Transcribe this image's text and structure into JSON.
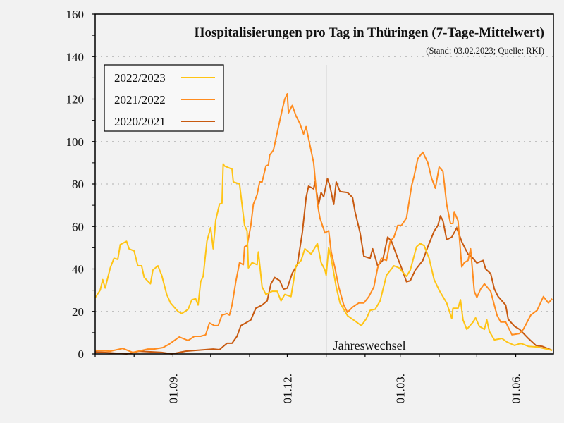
{
  "chart_data": {
    "type": "line",
    "title": "Hospitalisierungen pro Tag in Thüringen (7-Tage-Mittelwert)",
    "subtitle": "(Stand: 03.02.2023; Quelle: RKI)",
    "xlabel": "",
    "ylabel": "",
    "ylim": [
      0,
      160
    ],
    "xlim": [
      "01.07.",
      "30.06."
    ],
    "yticks": [
      "0",
      "20",
      "40",
      "60",
      "80",
      "100",
      "120",
      "140",
      "160"
    ],
    "xticks": [
      "01.09.",
      "01.12.",
      "01.03.",
      "01.06."
    ],
    "grid": "horizontal dotted",
    "legend_position": "top-left",
    "annotation": {
      "label": "Jahreswechsel",
      "x": "01.01."
    },
    "series": [
      {
        "name": "2022/2023",
        "color": "#ffc414",
        "points": [
          [
            "01.07.",
            26.5
          ],
          [
            "05.07.",
            30
          ],
          [
            "07.07.",
            35
          ],
          [
            "09.07.",
            31
          ],
          [
            "13.07.",
            40.5
          ],
          [
            "16.07.",
            45
          ],
          [
            "19.07.",
            44.5
          ],
          [
            "21.07.",
            51.5
          ],
          [
            "26.07.",
            53
          ],
          [
            "28.07.",
            49.5
          ],
          [
            "01.08.",
            48.5
          ],
          [
            "04.08.",
            41.5
          ],
          [
            "07.08.",
            41.5
          ],
          [
            "09.08.",
            36
          ],
          [
            "14.08.",
            33
          ],
          [
            "16.08.",
            39.5
          ],
          [
            "20.08.",
            41.5
          ],
          [
            "23.08.",
            37
          ],
          [
            "27.08.",
            28
          ],
          [
            "30.08.",
            24
          ],
          [
            "05.09.",
            20
          ],
          [
            "08.09.",
            19
          ],
          [
            "13.09.",
            21
          ],
          [
            "16.09.",
            25.5
          ],
          [
            "19.09.",
            26
          ],
          [
            "21.09.",
            23
          ],
          [
            "23.09.",
            34
          ],
          [
            "25.09.",
            36.5
          ],
          [
            "28.09.",
            53
          ],
          [
            "01.10.",
            59.5
          ],
          [
            "03.10.",
            49.5
          ],
          [
            "05.10.",
            63
          ],
          [
            "08.10.",
            70.5
          ],
          [
            "10.10.",
            71
          ],
          [
            "11.10.",
            89.5
          ],
          [
            "12.10.",
            88.5
          ],
          [
            "18.10.",
            87
          ],
          [
            "19.10.",
            81
          ],
          [
            "24.10.",
            80
          ],
          [
            "28.10.",
            60.5
          ],
          [
            "30.10.",
            58
          ],
          [
            "31.10.",
            40.5
          ],
          [
            "03.11.",
            43
          ],
          [
            "07.11.",
            42
          ],
          [
            "08.11.",
            48
          ],
          [
            "11.11.",
            31.5
          ],
          [
            "14.11.",
            28
          ],
          [
            "19.11.",
            29.5
          ],
          [
            "23.11.",
            29.5
          ],
          [
            "26.11.",
            25
          ],
          [
            "29.11.",
            28
          ],
          [
            "04.12.",
            27
          ],
          [
            "08.12.",
            41.5
          ],
          [
            "12.12.",
            44
          ],
          [
            "15.12.",
            49.5
          ],
          [
            "20.12.",
            47
          ],
          [
            "25.12.",
            52
          ],
          [
            "28.12.",
            43
          ],
          [
            "31.12.",
            39.5
          ],
          [
            "01.01.",
            37
          ],
          [
            "03.01.",
            50
          ],
          [
            "05.01.",
            45
          ],
          [
            "09.01.",
            31.5
          ],
          [
            "12.01.",
            24
          ],
          [
            "18.01.",
            18
          ],
          [
            "24.01.",
            15.5
          ],
          [
            "29.01.",
            13.3
          ],
          [
            "02.02.",
            16.6
          ],
          [
            "05.02.",
            20.5
          ],
          [
            "09.02.",
            21
          ],
          [
            "13.02.",
            25
          ],
          [
            "18.02.",
            37
          ],
          [
            "24.02.",
            41.5
          ],
          [
            "28.02.",
            40.5
          ],
          [
            "06.03.",
            36.5
          ],
          [
            "09.03.",
            39.5
          ],
          [
            "14.03.",
            50.5
          ],
          [
            "17.03.",
            52
          ],
          [
            "20.03.",
            51
          ],
          [
            "24.03.",
            45
          ],
          [
            "28.03.",
            35
          ],
          [
            "01.04.",
            30
          ],
          [
            "07.04.",
            24
          ],
          [
            "11.04.",
            16.6
          ],
          [
            "12.04.",
            21.5
          ],
          [
            "16.04.",
            21.5
          ],
          [
            "18.04.",
            25.5
          ],
          [
            "20.04.",
            16
          ],
          [
            "23.04.",
            11.6
          ],
          [
            "28.04.",
            15
          ],
          [
            "30.04.",
            17
          ],
          [
            "03.05.",
            13
          ],
          [
            "07.05.",
            11.6
          ],
          [
            "09.05.",
            16
          ],
          [
            "11.05.",
            10.6
          ],
          [
            "15.05.",
            6.6
          ],
          [
            "21.05.",
            7.3
          ],
          [
            "25.05.",
            5.6
          ],
          [
            "31.05.",
            4
          ],
          [
            "05.06.",
            5
          ],
          [
            "11.06.",
            3.6
          ],
          [
            "18.06.",
            3.3
          ],
          [
            "30.06.",
            1.7
          ]
        ]
      },
      {
        "name": "2021/2022",
        "color": "#ff8c1f",
        "points": [
          [
            "01.07.",
            1.7
          ],
          [
            "13.07.",
            1.3
          ],
          [
            "23.07.",
            2.6
          ],
          [
            "31.07.",
            0.7
          ],
          [
            "12.08.",
            2.3
          ],
          [
            "17.08.",
            2.3
          ],
          [
            "24.08.",
            3
          ],
          [
            "29.08.",
            4.6
          ],
          [
            "06.09.",
            8
          ],
          [
            "13.09.",
            6.3
          ],
          [
            "18.09.",
            8.3
          ],
          [
            "23.09.",
            8.3
          ],
          [
            "27.09.",
            9
          ],
          [
            "30.09.",
            14.6
          ],
          [
            "04.10.",
            13.3
          ],
          [
            "07.10.",
            13.3
          ],
          [
            "10.10.",
            18.3
          ],
          [
            "14.10.",
            19
          ],
          [
            "16.10.",
            18.3
          ],
          [
            "18.10.",
            23
          ],
          [
            "21.10.",
            34
          ],
          [
            "24.10.",
            43
          ],
          [
            "27.10.",
            42
          ],
          [
            "28.10.",
            50.5
          ],
          [
            "30.10.",
            51
          ],
          [
            "02.11.",
            60.5
          ],
          [
            "04.11.",
            70.5
          ],
          [
            "07.11.",
            75
          ],
          [
            "09.11.",
            81
          ],
          [
            "11.11.",
            81
          ],
          [
            "14.11.",
            88.5
          ],
          [
            "16.11.",
            89
          ],
          [
            "17.11.",
            93.6
          ],
          [
            "20.11.",
            96
          ],
          [
            "24.11.",
            107
          ],
          [
            "27.11.",
            115
          ],
          [
            "29.11.",
            120
          ],
          [
            "01.12.",
            122.5
          ],
          [
            "02.12.",
            113.5
          ],
          [
            "05.12.",
            117
          ],
          [
            "08.12.",
            112
          ],
          [
            "11.12.",
            108.5
          ],
          [
            "14.12.",
            103.5
          ],
          [
            "16.12.",
            107
          ],
          [
            "19.12.",
            98.5
          ],
          [
            "22.12.",
            90
          ],
          [
            "25.12.",
            71
          ],
          [
            "27.12.",
            64
          ],
          [
            "31.12.",
            57
          ],
          [
            "03.01.",
            58
          ],
          [
            "05.01.",
            48
          ],
          [
            "08.01.",
            40.5
          ],
          [
            "11.01.",
            31.5
          ],
          [
            "15.01.",
            23
          ],
          [
            "18.01.",
            19.6
          ],
          [
            "22.01.",
            22
          ],
          [
            "27.01.",
            24
          ],
          [
            "31.01.",
            24
          ],
          [
            "04.02.",
            27
          ],
          [
            "08.02.",
            31.5
          ],
          [
            "11.02.",
            40.5
          ],
          [
            "14.02.",
            45
          ],
          [
            "18.02.",
            44
          ],
          [
            "21.02.",
            53
          ],
          [
            "24.02.",
            55
          ],
          [
            "27.02.",
            60.5
          ],
          [
            "02.03.",
            60.5
          ],
          [
            "06.03.",
            64
          ],
          [
            "10.03.",
            79
          ],
          [
            "12.03.",
            83.6
          ],
          [
            "15.03.",
            92
          ],
          [
            "19.03.",
            95
          ],
          [
            "23.03.",
            90
          ],
          [
            "26.03.",
            82.6
          ],
          [
            "29.03.",
            78
          ],
          [
            "01.04.",
            88
          ],
          [
            "04.04.",
            86
          ],
          [
            "07.04.",
            70.4
          ],
          [
            "10.04.",
            61.4
          ],
          [
            "12.04.",
            61.4
          ],
          [
            "13.04.",
            67
          ],
          [
            "16.04.",
            62.7
          ],
          [
            "19.04.",
            41
          ],
          [
            "21.04.",
            43
          ],
          [
            "24.04.",
            44
          ],
          [
            "26.04.",
            49.5
          ],
          [
            "29.04.",
            29.5
          ],
          [
            "01.05.",
            26.6
          ],
          [
            "04.05.",
            30.5
          ],
          [
            "07.05.",
            33
          ],
          [
            "12.05.",
            29.5
          ],
          [
            "17.05.",
            18.3
          ],
          [
            "20.05.",
            15
          ],
          [
            "24.05.",
            15
          ],
          [
            "29.05.",
            9
          ],
          [
            "04.06.",
            9.6
          ],
          [
            "07.06.",
            11.6
          ],
          [
            "13.06.",
            18.3
          ],
          [
            "18.06.",
            20.5
          ],
          [
            "23.06.",
            27
          ],
          [
            "27.06.",
            24
          ],
          [
            "30.06.",
            26
          ]
        ]
      },
      {
        "name": "2020/2021",
        "color": "#c85a10",
        "points": [
          [
            "01.07.",
            1
          ],
          [
            "26.07.",
            0
          ],
          [
            "05.08.",
            1.3
          ],
          [
            "23.08.",
            0.7
          ],
          [
            "31.08.",
            0
          ],
          [
            "11.09.",
            1.3
          ],
          [
            "20.09.",
            1.7
          ],
          [
            "03.10.",
            2.3
          ],
          [
            "08.10.",
            2
          ],
          [
            "14.10.",
            5
          ],
          [
            "18.10.",
            5
          ],
          [
            "22.10.",
            8.3
          ],
          [
            "25.10.",
            13.3
          ],
          [
            "29.10.",
            14.6
          ],
          [
            "02.11.",
            16
          ],
          [
            "06.11.",
            21.5
          ],
          [
            "11.11.",
            23
          ],
          [
            "15.11.",
            25
          ],
          [
            "18.11.",
            33
          ],
          [
            "21.11.",
            36
          ],
          [
            "25.11.",
            34.5
          ],
          [
            "28.11.",
            30.5
          ],
          [
            "01.12.",
            31
          ],
          [
            "05.12.",
            38
          ],
          [
            "09.12.",
            42
          ],
          [
            "13.12.",
            57
          ],
          [
            "16.12.",
            73.7
          ],
          [
            "18.12.",
            79
          ],
          [
            "22.12.",
            77.7
          ],
          [
            "23.12.",
            81
          ],
          [
            "26.12.",
            70.4
          ],
          [
            "28.12.",
            76
          ],
          [
            "30.12.",
            74
          ],
          [
            "02.01.",
            82.6
          ],
          [
            "04.01.",
            79
          ],
          [
            "07.01.",
            70.4
          ],
          [
            "09.01.",
            81
          ],
          [
            "12.01.",
            76.4
          ],
          [
            "18.01.",
            76
          ],
          [
            "22.01.",
            73.7
          ],
          [
            "24.01.",
            67
          ],
          [
            "28.01.",
            57
          ],
          [
            "31.01.",
            46
          ],
          [
            "05.02.",
            45
          ],
          [
            "07.02.",
            49.5
          ],
          [
            "11.02.",
            41.5
          ],
          [
            "15.02.",
            44
          ],
          [
            "19.02.",
            55
          ],
          [
            "22.02.",
            53
          ],
          [
            "27.02.",
            45
          ],
          [
            "02.03.",
            40.5
          ],
          [
            "06.03.",
            34
          ],
          [
            "09.03.",
            34.5
          ],
          [
            "13.03.",
            39.5
          ],
          [
            "19.03.",
            44
          ],
          [
            "23.03.",
            50.5
          ],
          [
            "28.03.",
            57.8
          ],
          [
            "31.03.",
            60.5
          ],
          [
            "02.04.",
            65
          ],
          [
            "04.04.",
            62.7
          ],
          [
            "07.04.",
            53.8
          ],
          [
            "11.04.",
            55
          ],
          [
            "15.04.",
            59.4
          ],
          [
            "19.04.",
            52.8
          ],
          [
            "24.04.",
            47
          ],
          [
            "28.04.",
            45
          ],
          [
            "01.05.",
            42.8
          ],
          [
            "06.05.",
            44
          ],
          [
            "08.05.",
            40
          ],
          [
            "12.05.",
            37.8
          ],
          [
            "15.05.",
            30.5
          ],
          [
            "18.05.",
            27
          ],
          [
            "24.05.",
            23
          ],
          [
            "26.05.",
            16.3
          ],
          [
            "31.05.",
            13
          ],
          [
            "04.06.",
            11.6
          ],
          [
            "11.06.",
            7.3
          ],
          [
            "17.06.",
            4
          ],
          [
            "22.06.",
            3.6
          ],
          [
            "30.06.",
            1.7
          ]
        ]
      }
    ]
  }
}
